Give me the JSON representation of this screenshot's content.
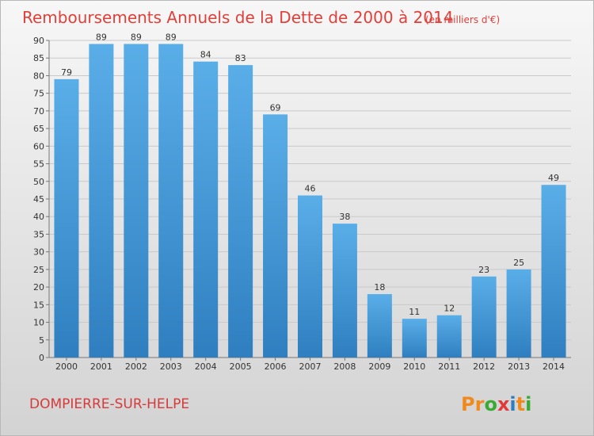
{
  "chart_data": {
    "type": "bar",
    "title": "Remboursements Annuels de la Dette de 2000 à 2014",
    "subtitle": "(en milliers d'€)",
    "categories": [
      "2000",
      "2001",
      "2002",
      "2003",
      "2004",
      "2005",
      "2006",
      "2007",
      "2008",
      "2009",
      "2010",
      "2011",
      "2012",
      "2013",
      "2014"
    ],
    "values": [
      79,
      89,
      89,
      89,
      84,
      83,
      69,
      46,
      38,
      18,
      11,
      12,
      23,
      25,
      49
    ],
    "ylim": [
      0,
      90
    ],
    "yticks": [
      0,
      5,
      10,
      15,
      20,
      25,
      30,
      35,
      40,
      45,
      50,
      55,
      60,
      65,
      70,
      75,
      80,
      85,
      90
    ],
    "grid": true,
    "legend": "none",
    "bar_color_top": "#5aaee8",
    "bar_color_bottom": "#2f7fc0"
  },
  "commune": "DOMPIERRE-SUR-HELPE",
  "logo": {
    "letters": [
      "P",
      "r",
      "o",
      "x",
      "i",
      "t",
      "i"
    ],
    "colors": [
      "#f08a1c",
      "#f08a1c",
      "#3aaa35",
      "#e23a3a",
      "#2f7fc0",
      "#f08a1c",
      "#3aaa35"
    ]
  }
}
